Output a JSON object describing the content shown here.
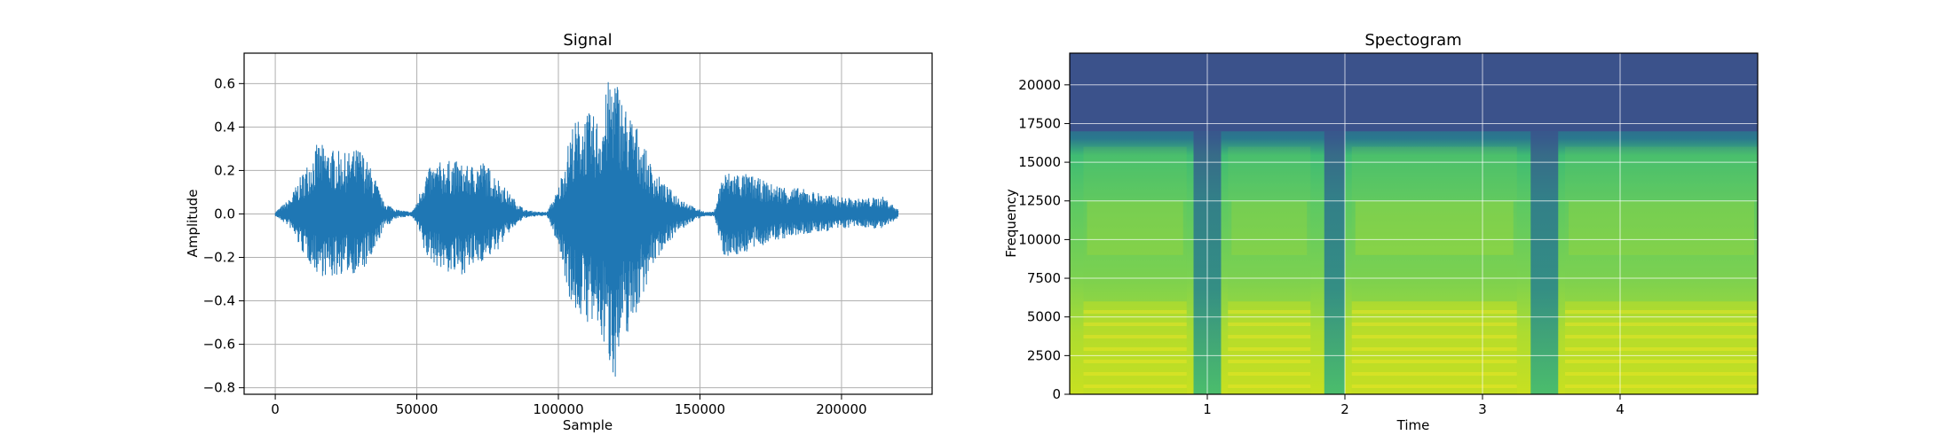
{
  "chart_data": [
    {
      "type": "line",
      "title": "Signal",
      "xlabel": "Sample",
      "ylabel": "Amplitude",
      "xlim": [
        -11000,
        232000
      ],
      "ylim": [
        -0.83,
        0.74
      ],
      "grid": true,
      "color": "#1f77b4",
      "x_ticks": [
        0,
        50000,
        100000,
        150000,
        200000
      ],
      "x_tick_labels": [
        "0",
        "50000",
        "100000",
        "150000",
        "200000"
      ],
      "y_ticks": [
        -0.8,
        -0.6,
        -0.4,
        -0.2,
        0.0,
        0.2,
        0.4,
        0.6
      ],
      "y_tick_labels": [
        "−0.8",
        "−0.6",
        "−0.4",
        "−0.2",
        "0.0",
        "0.2",
        "0.4",
        "0.6"
      ],
      "num_samples": 220000,
      "envelope": {
        "x": [
          0,
          5000,
          10000,
          15000,
          20000,
          25000,
          30000,
          35000,
          38000,
          43000,
          48000,
          50000,
          53000,
          58000,
          63000,
          68000,
          73000,
          78000,
          83000,
          88000,
          93000,
          96000,
          100000,
          105000,
          110000,
          115000,
          118000,
          120000,
          123000,
          128000,
          133000,
          138000,
          143000,
          148000,
          152000,
          155000,
          158000,
          162000,
          168000,
          175000,
          185000,
          195000,
          205000,
          215000,
          220000
        ],
        "upper": [
          0.01,
          0.07,
          0.2,
          0.33,
          0.3,
          0.28,
          0.31,
          0.18,
          0.06,
          0.02,
          0.01,
          0.05,
          0.2,
          0.24,
          0.25,
          0.22,
          0.25,
          0.18,
          0.09,
          0.02,
          0.01,
          0.01,
          0.12,
          0.42,
          0.47,
          0.44,
          0.64,
          0.66,
          0.52,
          0.4,
          0.22,
          0.13,
          0.08,
          0.03,
          0.01,
          0.01,
          0.19,
          0.2,
          0.18,
          0.14,
          0.12,
          0.09,
          0.07,
          0.08,
          0.02
        ],
        "lower": [
          -0.01,
          -0.06,
          -0.19,
          -0.28,
          -0.3,
          -0.27,
          -0.28,
          -0.2,
          -0.07,
          -0.02,
          -0.01,
          -0.05,
          -0.2,
          -0.25,
          -0.29,
          -0.27,
          -0.22,
          -0.18,
          -0.08,
          -0.02,
          -0.01,
          -0.01,
          -0.15,
          -0.45,
          -0.5,
          -0.58,
          -0.7,
          -0.76,
          -0.6,
          -0.45,
          -0.25,
          -0.14,
          -0.08,
          -0.03,
          -0.01,
          -0.01,
          -0.19,
          -0.2,
          -0.17,
          -0.13,
          -0.1,
          -0.08,
          -0.06,
          -0.07,
          -0.02
        ]
      }
    },
    {
      "type": "heatmap",
      "title": "Spectogram",
      "xlabel": "Time",
      "ylabel": "Frequency",
      "xlim": [
        0.0,
        5.0
      ],
      "ylim": [
        0,
        22050
      ],
      "grid": true,
      "colormap": "viridis",
      "x_ticks": [
        1,
        2,
        3,
        4
      ],
      "x_tick_labels": [
        "1",
        "2",
        "3",
        "4"
      ],
      "y_ticks": [
        0,
        2500,
        5000,
        7500,
        10000,
        12500,
        15000,
        17500,
        20000
      ],
      "y_tick_labels": [
        "0",
        "2500",
        "5000",
        "7500",
        "10000",
        "12500",
        "15000",
        "17500",
        "20000"
      ],
      "cutoff_frequency": 17000,
      "speech_segments": [
        {
          "start": 0.1,
          "end": 0.85,
          "level": 0.75
        },
        {
          "start": 1.15,
          "end": 1.75,
          "level": 0.7
        },
        {
          "start": 2.05,
          "end": 3.25,
          "level": 0.85
        },
        {
          "start": 3.6,
          "end": 5.0,
          "level": 0.7
        }
      ],
      "silent_gaps": [
        {
          "start": 0.9,
          "end": 1.1
        },
        {
          "start": 1.85,
          "end": 2.0
        },
        {
          "start": 3.35,
          "end": 3.55
        }
      ]
    }
  ]
}
